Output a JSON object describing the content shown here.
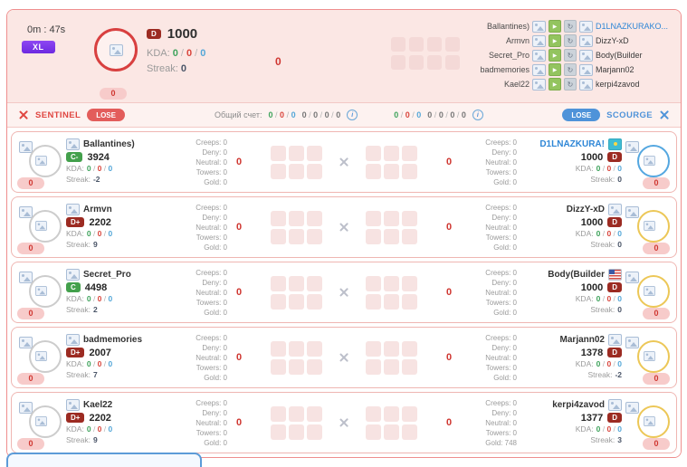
{
  "header": {
    "timer": "0m : 47s",
    "mode_badge": "XL",
    "avatar_badge": "0",
    "rank": "D",
    "rank_color": "#9c2b22",
    "mmr": "1000",
    "kda": [
      "0",
      "0",
      "0"
    ],
    "streak": "0",
    "score": "0",
    "pairs": [
      {
        "left": "Ballantines)",
        "right": "D1LNAZKURAKO...",
        "right_color": "#2e86d6"
      },
      {
        "left": "Armvn",
        "right": "DizzY-xD"
      },
      {
        "left": "Secret_Pro",
        "right": "Body(Builder"
      },
      {
        "left": "badmemories",
        "right": "Marjann02"
      },
      {
        "left": "Kael22",
        "right": "kerpi4zavod"
      }
    ]
  },
  "labels": {
    "kda": "KDA:",
    "streak": "Streak:",
    "creeps": "Creeps:",
    "deny": "Deny:",
    "neutral": "Neutral:",
    "towers": "Towers:",
    "gold": "Gold:",
    "score": "Общий счет:"
  },
  "team_bar": {
    "left_team": "SENTINEL",
    "left_result": "LOSE",
    "left_kda": [
      "0",
      "0",
      "0"
    ],
    "left_extra": [
      "0",
      "0",
      "0",
      "0"
    ],
    "right_kda": [
      "0",
      "0",
      "0"
    ],
    "right_extra": [
      "0",
      "0",
      "0",
      "0"
    ],
    "right_result": "LOSE",
    "right_team": "SCOURGE"
  },
  "rows": [
    {
      "left": {
        "name": "Ballantines)",
        "icon": "img",
        "rank": "C-",
        "rank_color": "#43a04c",
        "mmr": "3924",
        "kda": [
          "0",
          "0",
          "0"
        ],
        "streak": "-2",
        "badge": "0",
        "ring": "#cccccc"
      },
      "left_stats": {
        "creeps": "0",
        "deny": "0",
        "neutral": "0",
        "towers": "0",
        "gold": "0"
      },
      "left_score": "0",
      "right_score": "0",
      "right_stats": {
        "creeps": "0",
        "deny": "0",
        "neutral": "0",
        "towers": "0",
        "gold": "0"
      },
      "right": {
        "name": "D1LNAZKURA!",
        "name_color": "#2e86d6",
        "icon": "kz",
        "rank": "D",
        "rank_color": "#9c2b22",
        "mmr": "1000",
        "kda": [
          "0",
          "0",
          "0"
        ],
        "streak": "0",
        "badge": "0",
        "ring": "#54a7e0"
      }
    },
    {
      "left": {
        "name": "Armvn",
        "icon": "img",
        "rank": "D+",
        "rank_color": "#9c2b22",
        "mmr": "2202",
        "kda": [
          "0",
          "0",
          "0"
        ],
        "streak": "9",
        "badge": "0",
        "ring": "#cccccc"
      },
      "left_stats": {
        "creeps": "0",
        "deny": "0",
        "neutral": "0",
        "towers": "0",
        "gold": "0"
      },
      "left_score": "0",
      "right_score": "0",
      "right_stats": {
        "creeps": "0",
        "deny": "0",
        "neutral": "0",
        "towers": "0",
        "gold": "0"
      },
      "right": {
        "name": "DizzY-xD",
        "icon": "img",
        "rank": "D",
        "rank_color": "#9c2b22",
        "mmr": "1000",
        "kda": [
          "0",
          "0",
          "0"
        ],
        "streak": "0",
        "badge": "0",
        "ring": "#ecc757"
      }
    },
    {
      "left": {
        "name": "Secret_Pro",
        "icon": "img",
        "rank": "C",
        "rank_color": "#43a04c",
        "mmr": "4498",
        "kda": [
          "0",
          "0",
          "0"
        ],
        "streak": "2",
        "badge": "0",
        "ring": "#cccccc"
      },
      "left_stats": {
        "creeps": "0",
        "deny": "0",
        "neutral": "0",
        "towers": "0",
        "gold": "0"
      },
      "left_score": "0",
      "right_score": "0",
      "right_stats": {
        "creeps": "0",
        "deny": "0",
        "neutral": "0",
        "towers": "0",
        "gold": "0"
      },
      "right": {
        "name": "Body(Builder",
        "icon": "us",
        "rank": "D",
        "rank_color": "#9c2b22",
        "mmr": "1000",
        "kda": [
          "0",
          "0",
          "0"
        ],
        "streak": "0",
        "badge": "0",
        "ring": "#ecc757"
      }
    },
    {
      "left": {
        "name": "badmemories",
        "icon": "img",
        "rank": "D+",
        "rank_color": "#9c2b22",
        "mmr": "2007",
        "kda": [
          "0",
          "0",
          "0"
        ],
        "streak": "7",
        "badge": "0",
        "ring": "#cccccc"
      },
      "left_stats": {
        "creeps": "0",
        "deny": "0",
        "neutral": "0",
        "towers": "0",
        "gold": "0"
      },
      "left_score": "0",
      "right_score": "0",
      "right_stats": {
        "creeps": "0",
        "deny": "0",
        "neutral": "0",
        "towers": "0",
        "gold": "0"
      },
      "right": {
        "name": "Marjann02",
        "icon": "img",
        "rank": "D",
        "rank_color": "#9c2b22",
        "mmr": "1378",
        "kda": [
          "0",
          "0",
          "0"
        ],
        "streak": "-2",
        "badge": "0",
        "ring": "#ecc757"
      }
    },
    {
      "left": {
        "name": "Kael22",
        "icon": "img",
        "rank": "D+",
        "rank_color": "#9c2b22",
        "mmr": "2202",
        "kda": [
          "0",
          "0",
          "0"
        ],
        "streak": "9",
        "badge": "0",
        "ring": "#cccccc"
      },
      "left_stats": {
        "creeps": "0",
        "deny": "0",
        "neutral": "0",
        "towers": "0",
        "gold": "0"
      },
      "left_score": "0",
      "right_score": "0",
      "right_stats": {
        "creeps": "0",
        "deny": "0",
        "neutral": "0",
        "towers": "0",
        "gold": "748"
      },
      "right": {
        "name": "kerpi4zavod",
        "icon": "img",
        "rank": "D",
        "rank_color": "#9c2b22",
        "mmr": "1377",
        "kda": [
          "0",
          "0",
          "0"
        ],
        "streak": "3",
        "badge": "0",
        "ring": "#ecc757"
      }
    }
  ]
}
